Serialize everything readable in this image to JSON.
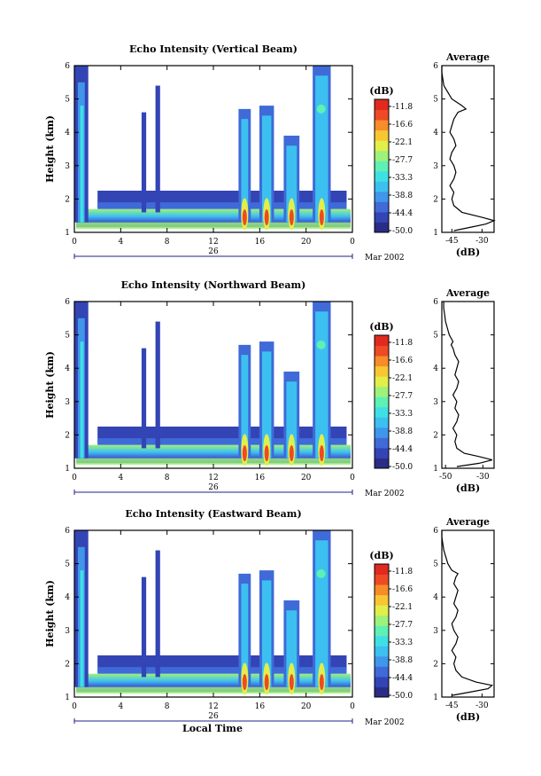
{
  "xlabel": "Local Time",
  "colorbar_unit": "(dB)",
  "colorbar_ticks": [
    "-11.8",
    "-16.6",
    "-22.1",
    "-27.7",
    "-33.3",
    "-38.8",
    "-44.4",
    "-50.0"
  ],
  "colors": {
    "scale": [
      "#2a2d85",
      "#3344b5",
      "#3f6ad8",
      "#3f96ea",
      "#3cc0f0",
      "#3ee0e4",
      "#5ff0b4",
      "#9ef27a",
      "#e2ee4a",
      "#f7c632",
      "#f78c2a",
      "#ee4a25",
      "#e02a20"
    ],
    "frame": "#000000",
    "date_axis": "#20208a"
  },
  "chart_data": [
    {
      "type": "heatmap",
      "title": "Echo Intensity (Vertical Beam)",
      "ylabel": "Height (km)",
      "xlim": [
        0,
        24
      ],
      "ylim": [
        1,
        6
      ],
      "x_ticks": [
        "0",
        "4",
        "8",
        "12",
        "16",
        "20",
        "0"
      ],
      "y_ticks": [
        "1",
        "2",
        "3",
        "4",
        "5",
        "6"
      ],
      "date_tick": "26",
      "date_label": "Mar 2002",
      "value_range_db": [
        -50.0,
        -11.8
      ],
      "profile": {
        "title": "Average",
        "xlabel": "(dB)",
        "x_ticks": [
          "-45",
          "-30"
        ],
        "y_ticks": [
          "1",
          "2",
          "3",
          "4",
          "5",
          "6"
        ],
        "xlim": [
          -50,
          -24
        ],
        "ylim": [
          1,
          6
        ],
        "height_km": [
          1.05,
          1.15,
          1.25,
          1.35,
          1.45,
          1.6,
          1.8,
          2.0,
          2.2,
          2.4,
          2.6,
          2.8,
          3.0,
          3.2,
          3.4,
          3.6,
          3.8,
          4.0,
          4.2,
          4.4,
          4.6,
          4.7,
          4.8,
          5.0,
          5.2,
          5.4,
          5.6,
          5.8,
          6.0
        ],
        "db": [
          -44,
          -36,
          -28,
          -24,
          -30,
          -40,
          -44,
          -45,
          -44,
          -46,
          -44,
          -43,
          -44,
          -46,
          -45,
          -43,
          -44,
          -46,
          -45,
          -44,
          -42,
          -38,
          -40,
          -45,
          -47,
          -49,
          -49.5,
          -50,
          -50
        ]
      }
    },
    {
      "type": "heatmap",
      "title": "Echo Intensity (Northward Beam)",
      "ylabel": "Height (km)",
      "xlim": [
        0,
        24
      ],
      "ylim": [
        1,
        6
      ],
      "x_ticks": [
        "0",
        "4",
        "8",
        "12",
        "16",
        "20",
        "0"
      ],
      "y_ticks": [
        "1",
        "2",
        "3",
        "4",
        "5",
        "6"
      ],
      "date_tick": "26",
      "date_label": "Mar 2002",
      "value_range_db": [
        -50.0,
        -11.8
      ],
      "profile": {
        "title": "Average",
        "xlabel": "(dB)",
        "x_ticks": [
          "-50",
          "-30"
        ],
        "y_ticks": [
          "1",
          "2",
          "3",
          "4",
          "5",
          "6"
        ],
        "xlim": [
          -52,
          -24
        ],
        "ylim": [
          1,
          6
        ],
        "height_km": [
          1.05,
          1.15,
          1.25,
          1.35,
          1.45,
          1.6,
          1.8,
          2.0,
          2.2,
          2.4,
          2.6,
          2.8,
          3.0,
          3.2,
          3.4,
          3.6,
          3.8,
          4.0,
          4.2,
          4.4,
          4.6,
          4.7,
          4.8,
          5.0,
          5.2,
          5.4,
          5.6,
          5.8,
          6.0
        ],
        "db": [
          -44,
          -32,
          -25,
          -32,
          -40,
          -44,
          -45,
          -44,
          -46,
          -44,
          -43,
          -45,
          -44,
          -46,
          -44,
          -43,
          -45,
          -44,
          -43,
          -45,
          -46,
          -47,
          -46,
          -48,
          -49,
          -50,
          -50.5,
          -51,
          -51
        ]
      }
    },
    {
      "type": "heatmap",
      "title": "Echo Intensity (Eastward Beam)",
      "ylabel": "Height (km)",
      "xlim": [
        0,
        24
      ],
      "ylim": [
        1,
        6
      ],
      "x_ticks": [
        "0",
        "4",
        "8",
        "12",
        "16",
        "20",
        "0"
      ],
      "y_ticks": [
        "1",
        "2",
        "3",
        "4",
        "5",
        "6"
      ],
      "date_tick": "26",
      "date_label": "Mar 2002",
      "value_range_db": [
        -50.0,
        -11.8
      ],
      "profile": {
        "title": "Average",
        "xlabel": "(dB)",
        "x_ticks": [
          "-45",
          "-30"
        ],
        "y_ticks": [
          "1",
          "2",
          "3",
          "4",
          "5",
          "6"
        ],
        "xlim": [
          -50,
          -24
        ],
        "ylim": [
          1,
          6
        ],
        "height_km": [
          1.05,
          1.15,
          1.25,
          1.35,
          1.45,
          1.6,
          1.8,
          2.0,
          2.2,
          2.4,
          2.6,
          2.8,
          3.0,
          3.2,
          3.4,
          3.6,
          3.8,
          4.0,
          4.2,
          4.4,
          4.6,
          4.7,
          4.8,
          5.0,
          5.2,
          5.4,
          5.6,
          5.8,
          6.0
        ],
        "db": [
          -45,
          -36,
          -27,
          -25,
          -33,
          -40,
          -43,
          -44,
          -43,
          -45,
          -43,
          -42,
          -44,
          -45,
          -43,
          -42,
          -44,
          -43,
          -42,
          -44,
          -43,
          -42,
          -45,
          -47,
          -48,
          -49,
          -49.5,
          -50,
          -50
        ]
      }
    }
  ]
}
